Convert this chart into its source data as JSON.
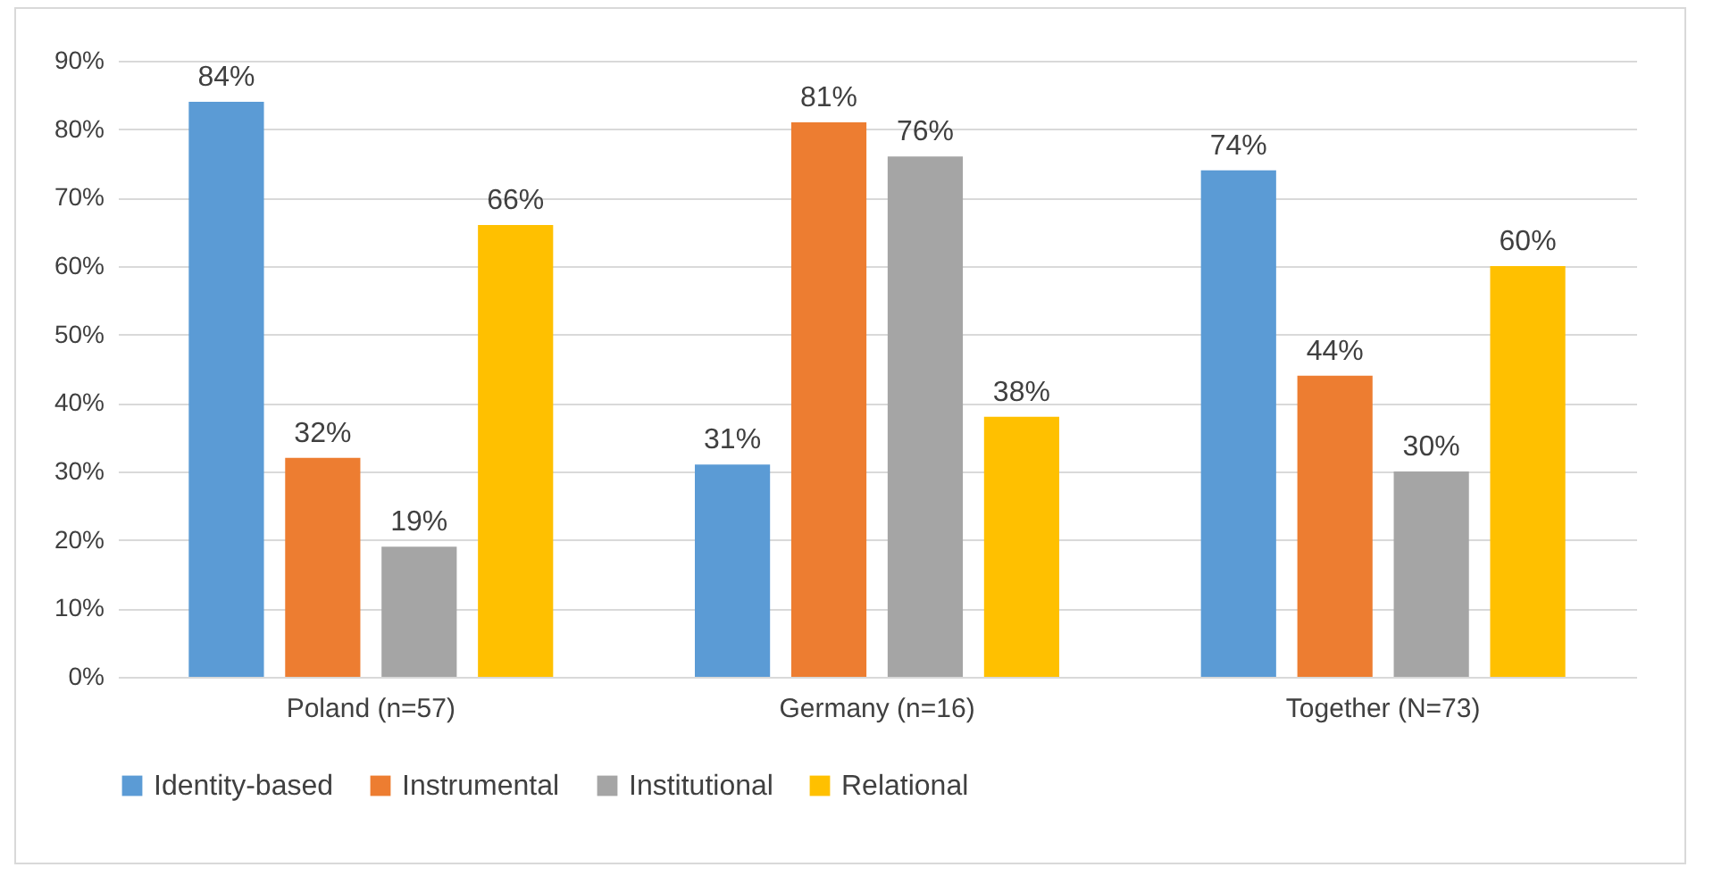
{
  "chart_data": {
    "type": "bar",
    "categories": [
      "Poland (n=57)",
      "Germany (n=16)",
      "Together (N=73)"
    ],
    "series": [
      {
        "name": "Identity-based",
        "color": "#5b9bd5",
        "values": [
          84,
          31,
          74
        ],
        "value_labels": [
          "84%",
          "31%",
          "74%"
        ]
      },
      {
        "name": "Instrumental",
        "color": "#ed7d31",
        "values": [
          32,
          81,
          44
        ],
        "value_labels": [
          "32%",
          "81%",
          "44%"
        ]
      },
      {
        "name": "Institutional",
        "color": "#a5a5a5",
        "values": [
          19,
          76,
          30
        ],
        "value_labels": [
          "19%",
          "76%",
          "30%"
        ]
      },
      {
        "name": "Relational",
        "color": "#ffc000",
        "values": [
          66,
          38,
          60
        ],
        "value_labels": [
          "66%",
          "38%",
          "60%"
        ]
      }
    ],
    "ylim": [
      0,
      90
    ],
    "yticks": [
      {
        "value": 0,
        "label": "0%"
      },
      {
        "value": 10,
        "label": "10%"
      },
      {
        "value": 20,
        "label": "20%"
      },
      {
        "value": 30,
        "label": "30%"
      },
      {
        "value": 40,
        "label": "40%"
      },
      {
        "value": 50,
        "label": "50%"
      },
      {
        "value": 60,
        "label": "60%"
      },
      {
        "value": 70,
        "label": "70%"
      },
      {
        "value": 80,
        "label": "80%"
      },
      {
        "value": 90,
        "label": "90%"
      }
    ],
    "grid": "y",
    "legend": "bottom"
  }
}
